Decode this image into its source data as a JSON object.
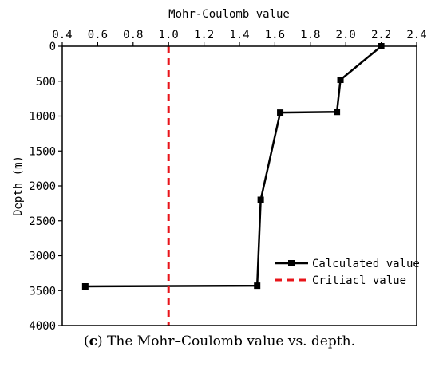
{
  "caption": {
    "label_open": "(",
    "label_letter": "c",
    "label_close": ")",
    "text": " The Mohr–Coulomb value vs. depth."
  },
  "chart_data": {
    "type": "line",
    "title": "",
    "xlabel": "Mohr-Coulomb value",
    "ylabel": "Depth (m)",
    "x_axis_position": "top",
    "y_axis_inverted": true,
    "xlim": [
      0.4,
      2.4
    ],
    "ylim": [
      0,
      4000
    ],
    "x_ticks": [
      0.4,
      0.6,
      0.8,
      1.0,
      1.2,
      1.4,
      1.6,
      1.8,
      2.0,
      2.2,
      2.4
    ],
    "x_tick_labels": [
      "0.4",
      "0.6",
      "0.8",
      "1.0",
      "1.2",
      "1.4",
      "1.6",
      "1.8",
      "2.0",
      "2.2",
      "2.4"
    ],
    "y_ticks": [
      0,
      500,
      1000,
      1500,
      2000,
      2500,
      3000,
      3500,
      4000
    ],
    "y_tick_labels": [
      "0",
      "500",
      "1000",
      "1500",
      "2000",
      "2500",
      "3000",
      "3500",
      "4000"
    ],
    "grid": false,
    "legend_position": "bottom-right",
    "series": [
      {
        "name": "Calculated value",
        "color": "#000000",
        "style": "solid",
        "marker": "square",
        "points": [
          {
            "x": 2.2,
            "y": 0
          },
          {
            "x": 1.97,
            "y": 480
          },
          {
            "x": 1.95,
            "y": 940
          },
          {
            "x": 1.63,
            "y": 950
          },
          {
            "x": 1.52,
            "y": 2200
          },
          {
            "x": 1.5,
            "y": 3430
          },
          {
            "x": 0.53,
            "y": 3440
          }
        ]
      },
      {
        "name": "Critiacl value",
        "color": "#e8141a",
        "style": "dashed",
        "marker": "none",
        "points": [
          {
            "x": 1.0,
            "y": 0
          },
          {
            "x": 1.0,
            "y": 4000
          }
        ]
      }
    ]
  }
}
